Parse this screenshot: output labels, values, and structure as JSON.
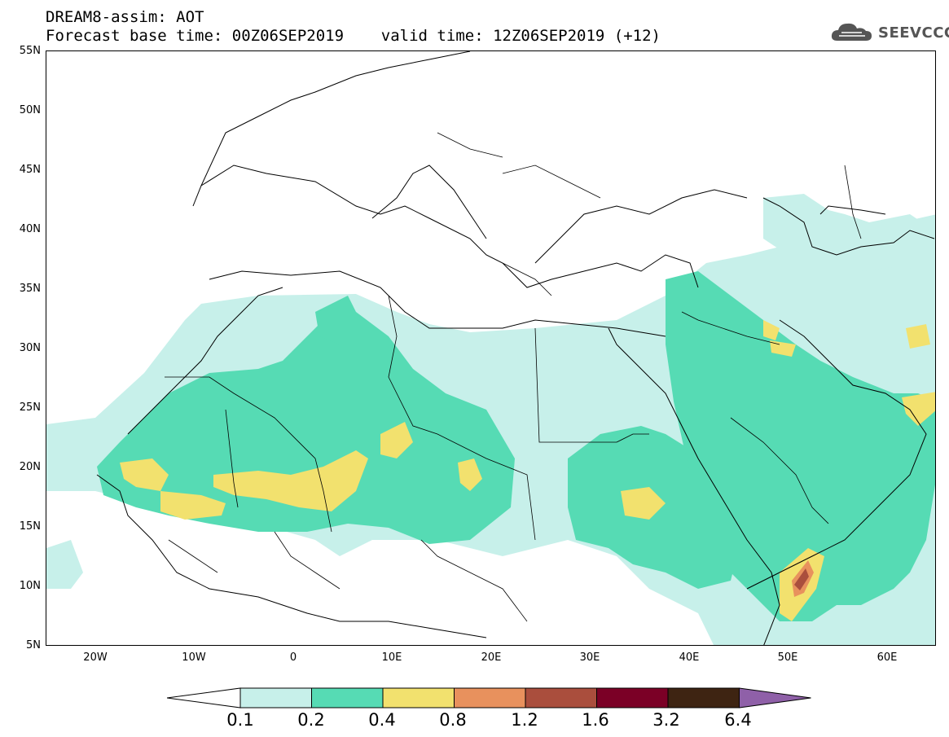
{
  "header": {
    "title_line1": "DREAM8-assim: AOT",
    "title_line2": "Forecast base time: 00Z06SEP2019    valid time: 12Z06SEP2019 (+12)"
  },
  "logo": {
    "text": "SEEVCCC",
    "icon": "cloud-icon",
    "color": "#555555"
  },
  "map": {
    "variable": "AOT",
    "lat_ticks": [
      "55N",
      "50N",
      "45N",
      "40N",
      "35N",
      "30N",
      "25N",
      "20N",
      "15N",
      "10N",
      "5N"
    ],
    "lon_ticks": [
      "20W",
      "10W",
      "0",
      "10E",
      "20E",
      "30E",
      "40E",
      "50E",
      "60E"
    ],
    "lat_range": [
      5,
      55
    ],
    "lon_range": [
      -25,
      65
    ]
  },
  "legend": {
    "thresholds": [
      "0.1",
      "0.2",
      "0.4",
      "0.8",
      "1.2",
      "1.6",
      "3.2",
      "6.4"
    ],
    "colors": [
      "#c7f0ea",
      "#56dbb4",
      "#f2e16e",
      "#e8915d",
      "#aa4e3d",
      "#7b0026",
      "#3e2412",
      "#8f60a8"
    ],
    "under_color": "#ffffff"
  }
}
